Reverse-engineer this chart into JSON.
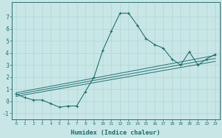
{
  "xlabel": "Humidex (Indice chaleur)",
  "ylabel": "",
  "background_color": "#c8e6e6",
  "line_color": "#1a6b6b",
  "grid_color": "#b0d4d4",
  "xlim": [
    -0.5,
    23.5
  ],
  "ylim": [
    -1.5,
    8.2
  ],
  "xticks": [
    0,
    1,
    2,
    3,
    4,
    5,
    6,
    7,
    8,
    9,
    10,
    11,
    12,
    13,
    14,
    15,
    16,
    17,
    18,
    19,
    20,
    21,
    22,
    23
  ],
  "yticks": [
    -1,
    0,
    1,
    2,
    3,
    4,
    5,
    6,
    7
  ],
  "main_x": [
    0,
    1,
    2,
    3,
    4,
    5,
    6,
    7,
    8,
    9,
    10,
    11,
    12,
    13,
    14,
    15,
    16,
    17,
    18,
    19,
    20,
    21,
    22,
    23
  ],
  "main_y": [
    0.6,
    0.3,
    0.1,
    0.1,
    -0.2,
    -0.5,
    -0.4,
    -0.4,
    0.8,
    2.0,
    4.2,
    5.8,
    7.3,
    7.3,
    6.3,
    5.2,
    4.7,
    4.4,
    3.5,
    3.0,
    4.1,
    3.0,
    3.5,
    3.9
  ],
  "line1_x": [
    0,
    23
  ],
  "line1_y": [
    0.4,
    3.3
  ],
  "line2_x": [
    0,
    23
  ],
  "line2_y": [
    0.55,
    3.55
  ],
  "line3_x": [
    0,
    23
  ],
  "line3_y": [
    0.7,
    3.8
  ]
}
